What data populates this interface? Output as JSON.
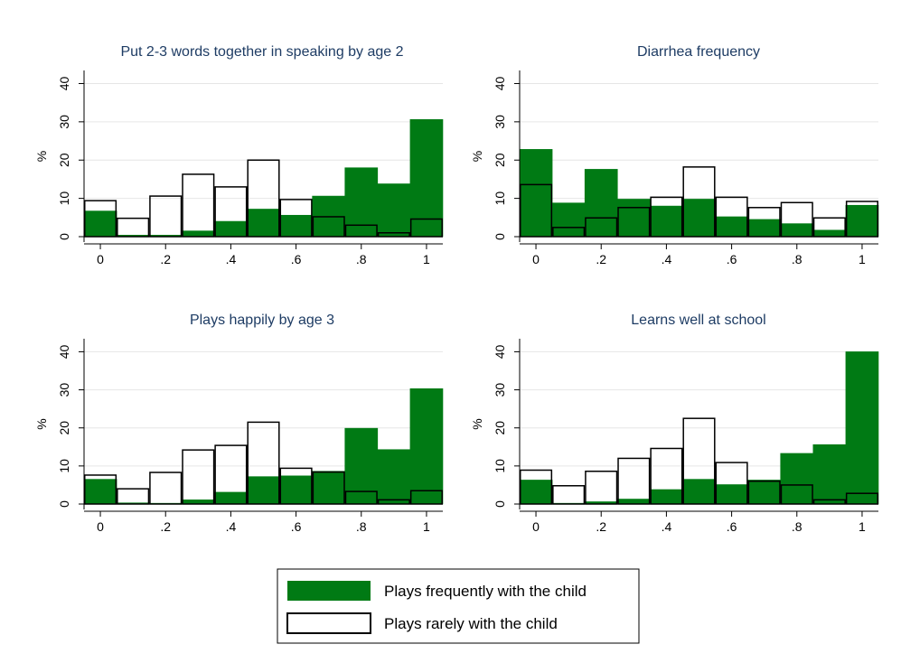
{
  "colors": {
    "frequent_fill": "#007a14",
    "rarely_fill": "#ffffff",
    "bar_outline": "#000000",
    "grid": "#e6e6e6",
    "title": "#1e3c64",
    "axis": "#000000"
  },
  "legend": {
    "items": [
      {
        "label": "Plays frequently with the child",
        "swatch": "filled-green"
      },
      {
        "label": "Plays rarely with the child",
        "swatch": "outlined-white"
      }
    ],
    "placement": "bottom-center"
  },
  "chart_data": [
    {
      "type": "bar",
      "title": "Put 2-3 words together in speaking by age 2",
      "ylabel": "%",
      "xlabel": "",
      "ylim": [
        0,
        42
      ],
      "yticks": [
        "0",
        "10",
        "20",
        "30",
        "40"
      ],
      "xticks": [
        "0",
        ".2",
        ".4",
        ".6",
        ".8",
        "1"
      ],
      "x_range": [
        -0.05,
        1.05
      ],
      "bin_centers": [
        0,
        0.1,
        0.2,
        0.3,
        0.4,
        0.5,
        0.6,
        0.7,
        0.8,
        0.9,
        1.0
      ],
      "grid": true,
      "series": [
        {
          "name": "Plays frequently with the child",
          "style": "filled",
          "values": [
            6.7,
            0.4,
            0.4,
            1.5,
            4.0,
            7.2,
            5.6,
            10.6,
            18.0,
            13.8,
            30.6
          ]
        },
        {
          "name": "Plays rarely with the child",
          "style": "outlined",
          "values": [
            9.4,
            4.8,
            10.6,
            16.3,
            13.0,
            20.0,
            9.7,
            5.2,
            3.0,
            1.0,
            4.6
          ]
        }
      ]
    },
    {
      "type": "bar",
      "title": "Diarrhea frequency",
      "ylabel": "%",
      "xlabel": "",
      "ylim": [
        0,
        42
      ],
      "yticks": [
        "0",
        "10",
        "20",
        "30",
        "40"
      ],
      "xticks": [
        "0",
        ".2",
        ".4",
        ".6",
        ".8",
        "1"
      ],
      "x_range": [
        -0.05,
        1.05
      ],
      "bin_centers": [
        0,
        0.1,
        0.2,
        0.3,
        0.4,
        0.5,
        0.6,
        0.7,
        0.8,
        0.9,
        1.0
      ],
      "grid": true,
      "series": [
        {
          "name": "Plays frequently with the child",
          "style": "filled",
          "values": [
            22.8,
            8.8,
            17.6,
            9.8,
            8.0,
            9.8,
            5.2,
            4.5,
            3.4,
            1.7,
            8.2
          ]
        },
        {
          "name": "Plays rarely with the child",
          "style": "outlined",
          "values": [
            13.6,
            2.4,
            4.9,
            7.6,
            10.3,
            18.2,
            10.3,
            7.6,
            8.9,
            4.9,
            9.2
          ]
        }
      ]
    },
    {
      "type": "bar",
      "title": "Plays happily by age 3",
      "ylabel": "%",
      "xlabel": "",
      "ylim": [
        0,
        42
      ],
      "yticks": [
        "0",
        "10",
        "20",
        "30",
        "40"
      ],
      "xticks": [
        "0",
        ".2",
        ".4",
        ".6",
        ".8",
        "1"
      ],
      "x_range": [
        -0.05,
        1.05
      ],
      "bin_centers": [
        0,
        0.1,
        0.2,
        0.3,
        0.4,
        0.5,
        0.6,
        0.7,
        0.8,
        0.9,
        1.0
      ],
      "grid": true,
      "series": [
        {
          "name": "Plays frequently with the child",
          "style": "filled",
          "values": [
            6.5,
            0.3,
            0.2,
            1.1,
            3.1,
            7.2,
            7.4,
            8.6,
            19.9,
            14.3,
            30.3
          ]
        },
        {
          "name": "Plays rarely with the child",
          "style": "outlined",
          "values": [
            7.6,
            4.0,
            8.3,
            14.2,
            15.4,
            21.5,
            9.4,
            8.4,
            3.3,
            1.1,
            3.5
          ]
        }
      ]
    },
    {
      "type": "bar",
      "title": "Learns well at school",
      "ylabel": "%",
      "xlabel": "",
      "ylim": [
        0,
        42
      ],
      "yticks": [
        "0",
        "10",
        "20",
        "30",
        "40"
      ],
      "xticks": [
        "0",
        ".2",
        ".4",
        ".6",
        ".8",
        "1"
      ],
      "x_range": [
        -0.05,
        1.05
      ],
      "bin_centers": [
        0,
        0.1,
        0.2,
        0.3,
        0.4,
        0.5,
        0.6,
        0.7,
        0.8,
        0.9,
        1.0
      ],
      "grid": true,
      "series": [
        {
          "name": "Plays frequently with the child",
          "style": "filled",
          "values": [
            6.3,
            0.2,
            0.6,
            1.3,
            3.8,
            6.5,
            5.1,
            6.3,
            13.3,
            15.6,
            40.0
          ]
        },
        {
          "name": "Plays rarely with the child",
          "style": "outlined",
          "values": [
            8.9,
            4.8,
            8.6,
            12.0,
            14.6,
            22.5,
            10.9,
            6.0,
            5.0,
            1.1,
            2.8
          ]
        }
      ]
    }
  ]
}
